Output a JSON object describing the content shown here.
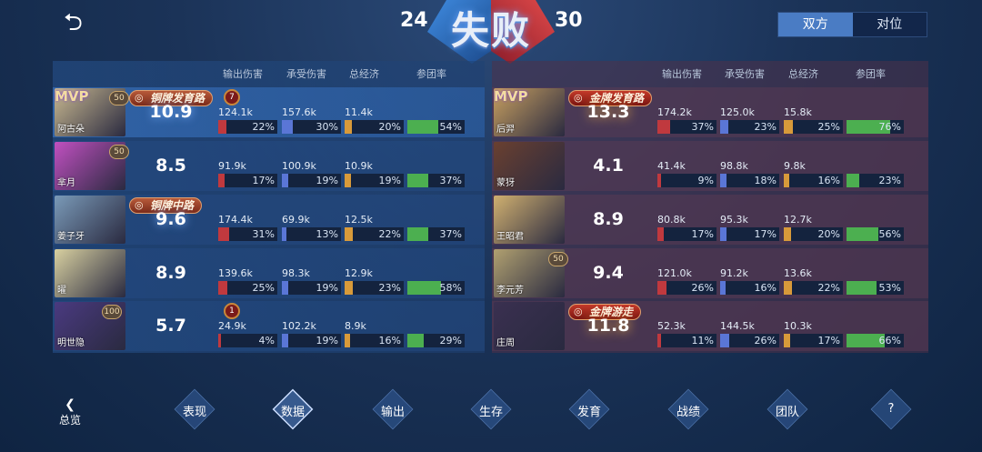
{
  "header": {
    "back_icon": "back-arrow-icon",
    "blue_score": "24",
    "result": "失败",
    "red_score": "30",
    "toggle": [
      "双方",
      "对位"
    ],
    "toggle_active": 0
  },
  "columns": [
    "输出伤害",
    "承受伤害",
    "总经济",
    "参团率"
  ],
  "colors": {
    "damage": "#c0393e",
    "taken": "#5a76d6",
    "gold": "#d89a3a",
    "participation": "#4caf50"
  },
  "blue_team": [
    {
      "hero": "阿古朵",
      "mvp": "MVP",
      "level": "50",
      "rank": "铜牌发育路",
      "medal": "7",
      "score": "10.9",
      "damage": "124.1k",
      "damage_pct": 22,
      "taken": "157.6k",
      "taken_pct": 30,
      "gold": "11.4k",
      "gold_pct": 20,
      "part_pct": 54
    },
    {
      "hero": "芈月",
      "level": "50",
      "score": "8.5",
      "damage": "91.9k",
      "damage_pct": 17,
      "taken": "100.9k",
      "taken_pct": 19,
      "gold": "10.9k",
      "gold_pct": 19,
      "part_pct": 37
    },
    {
      "hero": "姜子牙",
      "rank": "铜牌中路",
      "score": "9.6",
      "damage": "174.4k",
      "damage_pct": 31,
      "taken": "69.9k",
      "taken_pct": 13,
      "gold": "12.5k",
      "gold_pct": 22,
      "part_pct": 37
    },
    {
      "hero": "曜",
      "score": "8.9",
      "damage": "139.6k",
      "damage_pct": 25,
      "taken": "98.3k",
      "taken_pct": 19,
      "gold": "12.9k",
      "gold_pct": 23,
      "part_pct": 58
    },
    {
      "hero": "明世隐",
      "level": "100",
      "medal": "1",
      "score": "5.7",
      "damage": "24.9k",
      "damage_pct": 4,
      "taken": "102.2k",
      "taken_pct": 19,
      "gold": "8.9k",
      "gold_pct": 16,
      "part_pct": 29
    }
  ],
  "red_team": [
    {
      "hero": "后羿",
      "mvp": "MVP",
      "rank": "金牌发育路",
      "score": "13.3",
      "damage": "174.2k",
      "damage_pct": 37,
      "taken": "125.0k",
      "taken_pct": 23,
      "gold": "15.8k",
      "gold_pct": 25,
      "part_pct": 76
    },
    {
      "hero": "蒙犽",
      "score": "4.1",
      "damage": "41.4k",
      "damage_pct": 9,
      "taken": "98.8k",
      "taken_pct": 18,
      "gold": "9.8k",
      "gold_pct": 16,
      "part_pct": 23
    },
    {
      "hero": "王昭君",
      "score": "8.9",
      "damage": "80.8k",
      "damage_pct": 17,
      "taken": "95.3k",
      "taken_pct": 17,
      "gold": "12.7k",
      "gold_pct": 20,
      "part_pct": 56
    },
    {
      "hero": "李元芳",
      "level": "50",
      "score": "9.4",
      "damage": "121.0k",
      "damage_pct": 26,
      "taken": "91.2k",
      "taken_pct": 16,
      "gold": "13.6k",
      "gold_pct": 22,
      "part_pct": 53
    },
    {
      "hero": "庄周",
      "rank": "金牌游走",
      "score": "11.8",
      "damage": "52.3k",
      "damage_pct": 11,
      "taken": "144.5k",
      "taken_pct": 26,
      "gold": "10.3k",
      "gold_pct": 17,
      "part_pct": 66
    }
  ],
  "nav": {
    "overview": "总览",
    "tabs": [
      "表现",
      "数据",
      "输出",
      "生存",
      "发育",
      "战绩",
      "团队",
      "?"
    ],
    "active": 1
  }
}
